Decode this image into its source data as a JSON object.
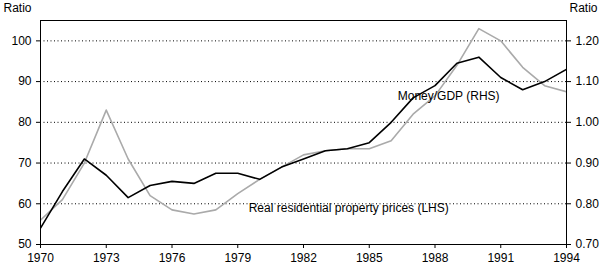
{
  "chart_data": {
    "type": "line",
    "x": [
      1970,
      1971,
      1972,
      1973,
      1974,
      1975,
      1976,
      1977,
      1978,
      1979,
      1980,
      1981,
      1982,
      1983,
      1984,
      1985,
      1986,
      1987,
      1988,
      1989,
      1990,
      1991,
      1992,
      1993,
      1994
    ],
    "series": [
      {
        "name": "Money/GDP (RHS)",
        "color": "#000000",
        "axis": "y2",
        "values": [
          0.74,
          0.83,
          0.91,
          0.87,
          0.815,
          0.845,
          0.855,
          0.85,
          0.875,
          0.875,
          0.86,
          0.89,
          0.91,
          0.93,
          0.935,
          0.95,
          1.0,
          1.06,
          1.09,
          1.145,
          1.16,
          1.11,
          1.08,
          1.1,
          1.13
        ]
      },
      {
        "name": "Real residential property prices (LHS)",
        "color": "#aaaaaa",
        "values": [
          56,
          61,
          70,
          83,
          71,
          62,
          58.5,
          57.5,
          58.5,
          62.5,
          66,
          69,
          72,
          73,
          73.5,
          73.5,
          75.5,
          82,
          86.5,
          94,
          103,
          100,
          93.5,
          89,
          87.5
        ]
      }
    ],
    "annotations": [
      {
        "series": "Money/GDP (RHS)",
        "x": 1986.3,
        "y": 86.5
      },
      {
        "series": "Real residential property prices (LHS)",
        "x": 1979.5,
        "y": 59
      }
    ],
    "ylabel": "Ratio",
    "y2label": "Ratio",
    "xlim": [
      1970,
      1994
    ],
    "xticks": [
      1970,
      1973,
      1976,
      1979,
      1982,
      1985,
      1988,
      1991,
      1994
    ],
    "ylim": [
      50,
      105
    ],
    "yticks": [
      50,
      60,
      70,
      80,
      90,
      100
    ],
    "y2lim": [
      0.7,
      1.25
    ],
    "y2ticks": [
      {
        "value": 0.7,
        "label": "0.70"
      },
      {
        "value": 0.8,
        "label": "0.80"
      },
      {
        "value": 0.9,
        "label": "0.90"
      },
      {
        "value": 1.0,
        "label": "1.00"
      },
      {
        "value": 1.1,
        "label": "1.10"
      },
      {
        "value": 1.2,
        "label": "1.20"
      }
    ],
    "grid": true
  }
}
